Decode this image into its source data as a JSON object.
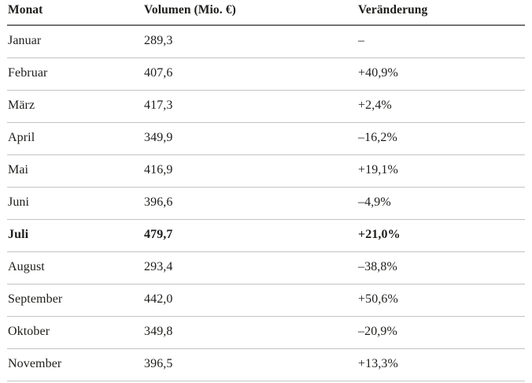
{
  "table": {
    "columns": {
      "month": "Monat",
      "volume": "Volumen (Mio. €)",
      "change": "Veränderung"
    },
    "rows": [
      {
        "month": "Januar",
        "volume": "289,3",
        "change": "–"
      },
      {
        "month": "Februar",
        "volume": "407,6",
        "change": "+40,9%"
      },
      {
        "month": "März",
        "volume": "417,3",
        "change": "+2,4%"
      },
      {
        "month": "April",
        "volume": "349,9",
        "change": "–16,2%"
      },
      {
        "month": "Mai",
        "volume": "416,9",
        "change": "+19,1%"
      },
      {
        "month": "Juni",
        "volume": "396,6",
        "change": "–4,9%"
      },
      {
        "month": "Juli",
        "volume": "479,7",
        "change": "+21,0%"
      },
      {
        "month": "August",
        "volume": "293,4",
        "change": "–38,8%"
      },
      {
        "month": "September",
        "volume": "442,0",
        "change": "+50,6%"
      },
      {
        "month": "Oktober",
        "volume": "349,8",
        "change": "–20,9%"
      },
      {
        "month": "November",
        "volume": "396,5",
        "change": "+13,3%"
      }
    ],
    "emphasized_row": "Juli"
  },
  "colors": {
    "text": "#1d1d1b",
    "header_rule": "#757575",
    "row_rule": "#c3c3c3",
    "background": "#ffffff"
  },
  "chart_data": {
    "type": "table",
    "columns": [
      "Monat",
      "Volumen (Mio. €)",
      "Veränderung"
    ],
    "months": [
      "Januar",
      "Februar",
      "März",
      "April",
      "Mai",
      "Juni",
      "Juli",
      "August",
      "September",
      "Oktober",
      "November"
    ],
    "volume_mio_eur": [
      289.3,
      407.6,
      417.3,
      349.9,
      416.9,
      396.6,
      479.7,
      293.4,
      442.0,
      349.8,
      396.5
    ],
    "change_percent": [
      null,
      40.9,
      2.4,
      -16.2,
      19.1,
      -4.9,
      21.0,
      -38.8,
      50.6,
      -20.9,
      13.3
    ],
    "emphasized_row": "Juli",
    "grid": "horizontal-rules-only",
    "legend": "none"
  }
}
